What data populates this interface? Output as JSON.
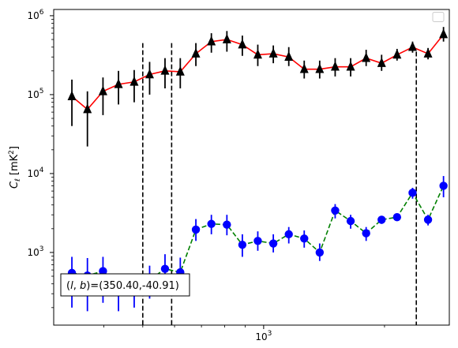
{
  "chart_data": {
    "type": "scatter",
    "title": "",
    "xlabel": "ℓ",
    "ylabel": "C_ℓ  [mK²]",
    "xscale": "log",
    "yscale": "log",
    "xlim": [
      300,
      2900
    ],
    "ylim": [
      120,
      1200000
    ],
    "grid": false,
    "legend": {
      "placement": "top-right",
      "entries": []
    },
    "x_ticks": [
      {
        "value": 1000,
        "base": "10",
        "exp": "3"
      }
    ],
    "y_ticks": [
      {
        "value": 1000,
        "base": "10",
        "exp": "3"
      },
      {
        "value": 10000,
        "base": "10",
        "exp": "4"
      },
      {
        "value": 100000,
        "base": "10",
        "exp": "5"
      },
      {
        "value": 1000000,
        "base": "10",
        "exp": "6"
      }
    ],
    "ylabel_parts": {
      "symbol": "C",
      "sub": "ℓ",
      "unit_pre": "[mK",
      "unit_sup": "2",
      "unit_post": "]"
    },
    "vlines": [
      {
        "x": 500,
        "ymin": 120,
        "ymax": 450000
      },
      {
        "x": 590,
        "ymin": 120,
        "ymax": 450000
      },
      {
        "x": 2400,
        "ymin": 120,
        "ymax": 350000
      }
    ],
    "annotation": {
      "prefix": "(",
      "italic": "l",
      "sep": ", ",
      "italic2": "b",
      "suffix": ")=(350.40,-40.91)"
    },
    "series": [
      {
        "marker": "triangle",
        "marker_color": "#000000",
        "line_color": "#ff0000",
        "linestyle": "solid",
        "x": [
          333,
          364,
          398,
          435,
          476,
          520,
          568,
          620,
          678,
          741,
          810,
          885,
          967,
          1057,
          1155,
          1262,
          1379,
          1507,
          1647,
          1800,
          1967,
          2149,
          2349,
          2567,
          2805
        ],
        "y": [
          95000,
          65000,
          110000,
          135000,
          145000,
          180000,
          200000,
          195000,
          330000,
          470000,
          500000,
          430000,
          320000,
          330000,
          300000,
          210000,
          210000,
          225000,
          225000,
          290000,
          250000,
          320000,
          400000,
          330000,
          580000
        ],
        "yerr_low": [
          40000,
          22000,
          55000,
          75000,
          80000,
          100000,
          120000,
          120000,
          230000,
          340000,
          350000,
          310000,
          230000,
          250000,
          230000,
          160000,
          160000,
          170000,
          170000,
          230000,
          200000,
          270000,
          340000,
          280000,
          470000
        ],
        "yerr_high": [
          155000,
          110000,
          165000,
          200000,
          205000,
          260000,
          290000,
          290000,
          450000,
          600000,
          640000,
          560000,
          430000,
          420000,
          400000,
          270000,
          270000,
          290000,
          290000,
          370000,
          320000,
          380000,
          470000,
          390000,
          720000
        ]
      },
      {
        "marker": "circle",
        "marker_color": "#0000ff",
        "line_color": "#008000",
        "linestyle": "dashed",
        "x": [
          333,
          364,
          398,
          435,
          476,
          520,
          568,
          620,
          678,
          741,
          810,
          885,
          967,
          1057,
          1155,
          1262,
          1379,
          1507,
          1647,
          1800,
          1967,
          2149,
          2349,
          2567,
          2805
        ],
        "y": [
          550,
          510,
          580,
          330,
          330,
          450,
          620,
          560,
          1950,
          2300,
          2250,
          1250,
          1400,
          1300,
          1700,
          1500,
          1000,
          3400,
          2500,
          1750,
          2600,
          2800,
          5700,
          2600,
          7000
        ],
        "yerr_low": [
          200,
          180,
          230,
          180,
          200,
          260,
          400,
          280,
          1400,
          1700,
          1650,
          880,
          1050,
          1000,
          1300,
          1150,
          780,
          2700,
          2000,
          1400,
          2300,
          2500,
          4800,
          2200,
          5000
        ],
        "yerr_high": [
          880,
          850,
          880,
          480,
          480,
          680,
          950,
          860,
          2650,
          3000,
          3000,
          1700,
          1850,
          1700,
          2100,
          1900,
          1300,
          4100,
          3000,
          2100,
          2900,
          3100,
          6600,
          3000,
          9300
        ]
      }
    ]
  }
}
